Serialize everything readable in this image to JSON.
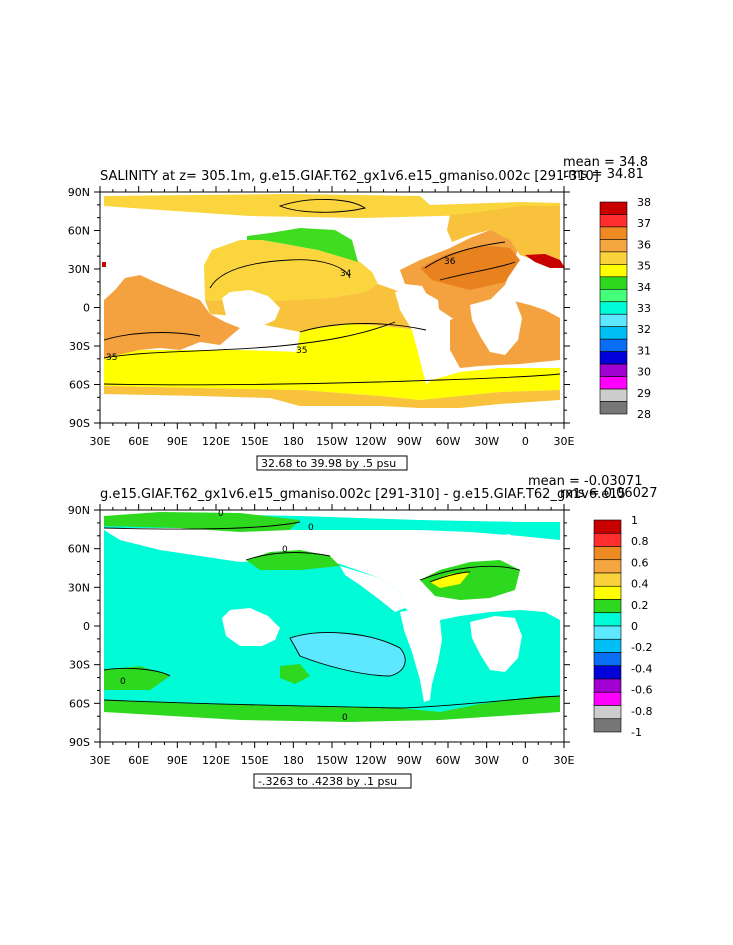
{
  "chart_data": [
    {
      "type": "heatmap",
      "title": "SALINITY at z= 305.1m, g.e15.GIAF.T62_gx1v6.e15_gmaniso.002c [291-310]",
      "stats": [
        "mean = 34.8",
        "rms = 34.81"
      ],
      "x_ticks": [
        "30E",
        "60E",
        "90E",
        "120E",
        "150E",
        "180",
        "150W",
        "120W",
        "90W",
        "60W",
        "30W",
        "0",
        "30E"
      ],
      "y_ticks": [
        "90N",
        "60N",
        "30N",
        "0",
        "30S",
        "60S",
        "90S"
      ],
      "contour_labels": [
        "36",
        "34",
        "35",
        "35"
      ],
      "contour_info": "32.68 to 39.98 by .5 psu",
      "colorbar": {
        "labels": [
          "38",
          "37",
          "36",
          "35",
          "34",
          "33",
          "32",
          "31",
          "30",
          "29",
          "28"
        ],
        "colors": [
          "#c80000",
          "#ff2d2d",
          "#ee8a22",
          "#f5a640",
          "#f9d23c",
          "#ffff00",
          "#2ed81f",
          "#43ff7a",
          "#00fbd7",
          "#5ee8ff",
          "#00bff5",
          "#0a6ef5",
          "#0000d8",
          "#a000d0",
          "#ff00ff",
          "#cdcdcd",
          "#777777"
        ]
      }
    },
    {
      "type": "heatmap",
      "title": "g.e15.GIAF.T62_gx1v6.e15_gmaniso.002c [291-310] - g.e15.GIAF.T62_gx1v6.e15",
      "stats": [
        "mean = -0.03071",
        "rms = 0.06027"
      ],
      "x_ticks": [
        "30E",
        "60E",
        "90E",
        "120E",
        "150E",
        "180",
        "150W",
        "120W",
        "90W",
        "60W",
        "30W",
        "0",
        "30E"
      ],
      "y_ticks": [
        "90N",
        "60N",
        "30N",
        "0",
        "30S",
        "60S",
        "90S"
      ],
      "contour_labels": [
        "0",
        "0",
        "0",
        "0",
        "0"
      ],
      "contour_info": "-.3263 to .4238 by .1 psu",
      "colorbar": {
        "labels": [
          "1",
          "0.8",
          "0.6",
          "0.4",
          "0.2",
          "0",
          "-0.2",
          "-0.4",
          "-0.6",
          "-0.8",
          "-1"
        ],
        "colors": [
          "#c80000",
          "#ff2d2d",
          "#ee8a22",
          "#f5a640",
          "#f9d23c",
          "#ffff00",
          "#2ed81f",
          "#00fbd7",
          "#5ee8ff",
          "#00bff5",
          "#0a6ef5",
          "#0000d8",
          "#a000d0",
          "#ff00ff",
          "#cdcdcd",
          "#777777"
        ]
      }
    }
  ]
}
